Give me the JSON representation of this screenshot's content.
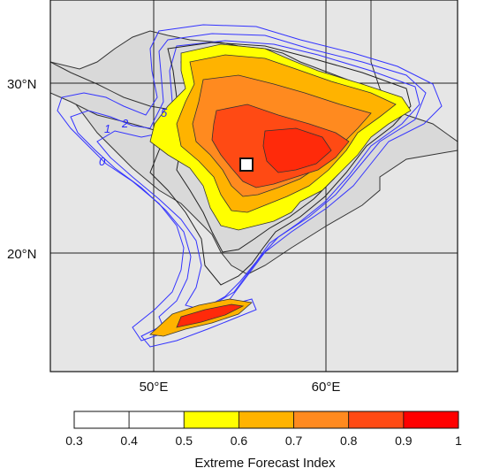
{
  "map": {
    "lat_labels": [
      "30°N",
      "20°N"
    ],
    "lon_labels": [
      "50°E",
      "60°E"
    ],
    "contour_labels": [
      "1",
      "2",
      "5",
      "0"
    ],
    "marker": "square-marker",
    "colors": {
      "ocean": "#d9d9d9",
      "land": "#e6e6e6",
      "coast": "#333333",
      "contour_blue": "#3333ff",
      "contour_black": "#222222"
    }
  },
  "colorbar": {
    "title": "Extreme Forecast Index",
    "tick_labels": [
      "0.3",
      "0.4",
      "0.5",
      "0.6",
      "0.7",
      "0.8",
      "0.9",
      "1"
    ],
    "bins": [
      {
        "from": 0.3,
        "to": 0.4,
        "color": "#ffffff"
      },
      {
        "from": 0.4,
        "to": 0.5,
        "color": "#ffffff"
      },
      {
        "from": 0.5,
        "to": 0.6,
        "color": "#ffff00"
      },
      {
        "from": 0.6,
        "to": 0.7,
        "color": "#ffb300"
      },
      {
        "from": 0.7,
        "to": 0.8,
        "color": "#ff8a1f"
      },
      {
        "from": 0.8,
        "to": 0.9,
        "color": "#ff4a14"
      },
      {
        "from": 0.9,
        "to": 1.0,
        "color": "#ff0000"
      }
    ]
  }
}
